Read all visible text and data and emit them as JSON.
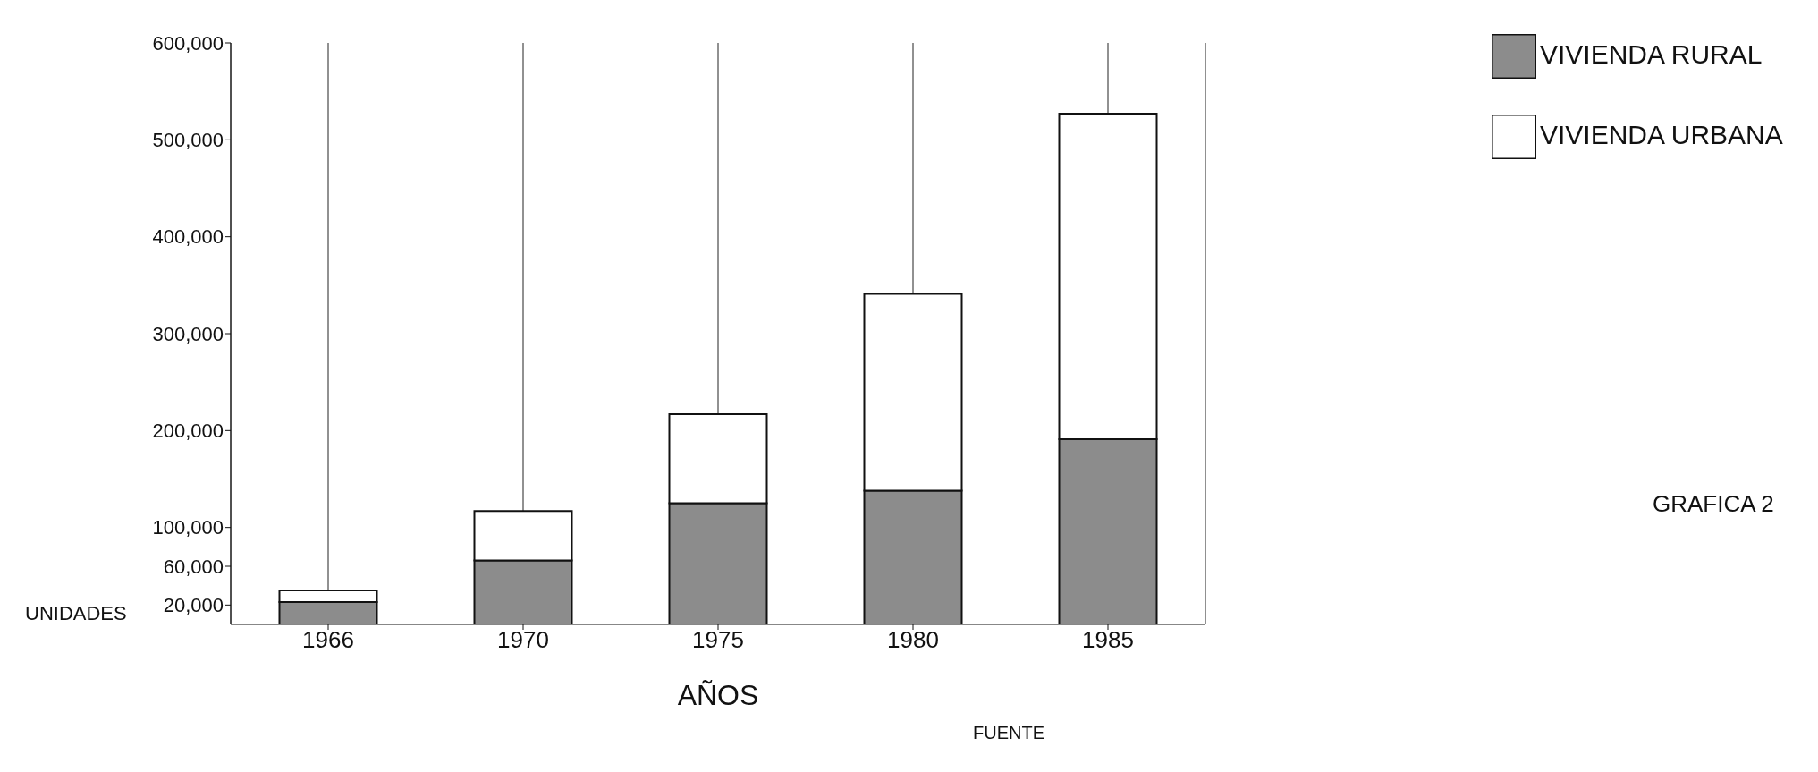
{
  "chart_data": {
    "type": "bar",
    "stacked": true,
    "categories": [
      "1966",
      "1970",
      "1975",
      "1980",
      "1985"
    ],
    "series": [
      {
        "name": "VIVIENDA RURAL",
        "color": "#8c8c8c",
        "values": [
          23000,
          66000,
          125000,
          138000,
          191000
        ]
      },
      {
        "name": "VIVIENDA URBANA",
        "color": "#ffffff",
        "values": [
          12000,
          51000,
          92000,
          203000,
          336000
        ]
      }
    ],
    "ylim": [
      0,
      600000
    ],
    "yticks": [
      {
        "value": 20000,
        "label": "20,000"
      },
      {
        "value": 60000,
        "label": "60,000"
      },
      {
        "value": 100000,
        "label": "100,000"
      },
      {
        "value": 200000,
        "label": "200,000"
      },
      {
        "value": 300000,
        "label": "300,000"
      },
      {
        "value": 400000,
        "label": "400,000"
      },
      {
        "value": 500000,
        "label": "500,000"
      },
      {
        "value": 600000,
        "label": "600,000"
      }
    ],
    "ylabel": "UNIDADES",
    "xlabel": "AÑOS",
    "grid": "x",
    "legend": "top right",
    "annotations": [
      "FUENTE",
      "GRAFICA 2"
    ]
  }
}
